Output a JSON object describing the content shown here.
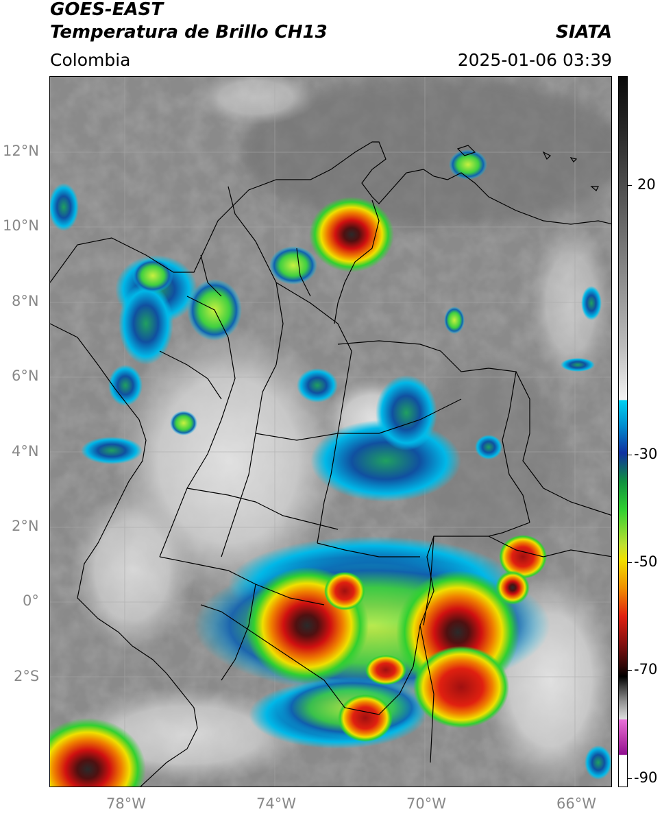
{
  "header": {
    "title_line1": "GOES-EAST",
    "title_line2": "Temperatura de Brillo CH13",
    "agency": "SIATA",
    "region": "Colombia",
    "timestamp": "2025-01-06 03:39"
  },
  "axes": {
    "lat_ticks": [
      "12°N",
      "10°N",
      "8°N",
      "6°N",
      "4°N",
      "2°N",
      "0°",
      "2°S"
    ],
    "lon_ticks": [
      "78°W",
      "74°W",
      "70°W",
      "66°W"
    ]
  },
  "colorbar": {
    "labels": [
      "20",
      "-30",
      "-50",
      "-70",
      "-90"
    ],
    "colors": {
      "warm_gray_dark": "#3a3a3a",
      "warm_gray_light": "#f0f0f0",
      "cyan": "#00c8f0",
      "blue": "#0040a0",
      "green": "#30d030",
      "yellow": "#f0e000",
      "orange": "#f08000",
      "red": "#d01010",
      "dark_red": "#501010",
      "black": "#000000",
      "magenta": "#e060d0",
      "purple": "#901090"
    }
  }
}
